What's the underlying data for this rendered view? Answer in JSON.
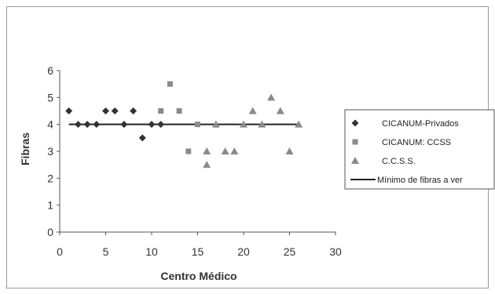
{
  "chart_data": {
    "type": "scatter",
    "xlabel": "Centro Médico",
    "ylabel": "Fibras",
    "xlim": [
      0,
      30
    ],
    "ylim": [
      0,
      6
    ],
    "xticks": [
      0,
      5,
      10,
      15,
      20,
      25,
      30
    ],
    "yticks": [
      0,
      1,
      2,
      3,
      4,
      5,
      6
    ],
    "legend_position": "right",
    "series": [
      {
        "name": "CICANUM-Privados",
        "marker": "diamond",
        "color": "#333333",
        "points": [
          [
            1,
            4.5
          ],
          [
            2,
            4
          ],
          [
            3,
            4
          ],
          [
            4,
            4
          ],
          [
            5,
            4.5
          ],
          [
            6,
            4.5
          ],
          [
            7,
            4
          ],
          [
            8,
            4.5
          ],
          [
            9,
            3.5
          ],
          [
            10,
            4
          ],
          [
            11,
            4
          ]
        ]
      },
      {
        "name": "CICANUM: CCSS",
        "marker": "square",
        "color": "#8a8a8a",
        "points": [
          [
            11,
            4.5
          ],
          [
            12,
            5.5
          ],
          [
            13,
            4.5
          ],
          [
            14,
            3
          ],
          [
            15,
            4
          ]
        ]
      },
      {
        "name": "C.C.S.S.",
        "marker": "triangle",
        "color": "#8a8a8a",
        "points": [
          [
            16,
            3
          ],
          [
            16,
            2.5
          ],
          [
            17,
            4
          ],
          [
            18,
            3
          ],
          [
            19,
            3
          ],
          [
            20,
            4
          ],
          [
            21,
            4.5
          ],
          [
            22,
            4
          ],
          [
            23,
            5
          ],
          [
            24,
            4.5
          ],
          [
            25,
            3
          ],
          [
            26,
            4
          ]
        ]
      },
      {
        "name": "Mínimo de fibras a ver",
        "marker": "line",
        "color": "#222222",
        "points": [
          [
            1,
            4
          ],
          [
            26,
            4
          ]
        ]
      }
    ]
  }
}
